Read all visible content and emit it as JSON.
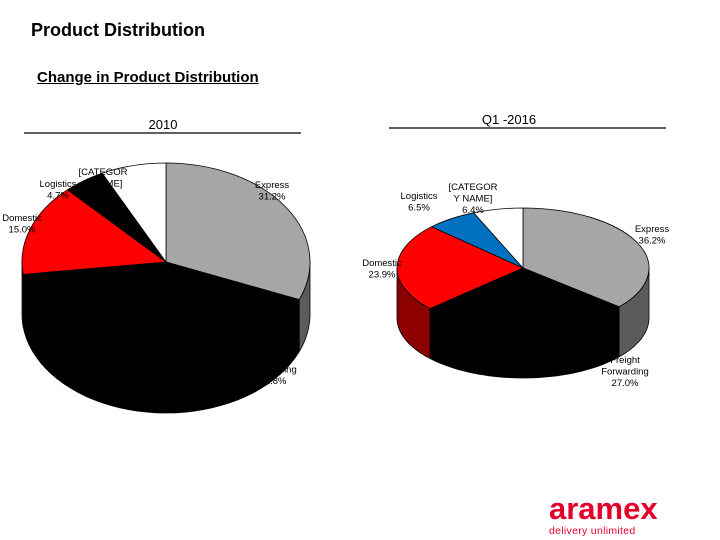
{
  "page": {
    "title": "Product Distribution",
    "subtitle": "Change in Product Distribution"
  },
  "logo": {
    "name": "aramex",
    "tagline": "delivery unlimited",
    "color": "#e3002b"
  },
  "chart_data": [
    {
      "type": "pie",
      "title": "2010",
      "three_d": true,
      "slices": [
        {
          "label_lines": [
            "Express",
            "31.2%"
          ],
          "category": "Express",
          "value": 31.2,
          "color": "#a6a6a6"
        },
        {
          "label_lines": [
            "Freight",
            "Forwarding",
            "41.8%"
          ],
          "category": "Freight Forwarding",
          "value": 41.8,
          "color": "#000000"
        },
        {
          "label_lines": [
            "Domestic",
            "15.0%"
          ],
          "category": "Domestic",
          "value": 15.0,
          "color": "#ff0000"
        },
        {
          "label_lines": [
            "Logistics",
            "4.7%"
          ],
          "category": "Logistics",
          "value": 4.7,
          "color": "#000000"
        },
        {
          "label_lines": [
            "[CATEGOR",
            "Y NAME]",
            "7.3%"
          ],
          "category": "[CATEGORY NAME]",
          "value": 7.3,
          "color": "#ffffff"
        }
      ]
    },
    {
      "type": "pie",
      "title": "Q1 -2016",
      "three_d": true,
      "slices": [
        {
          "label_lines": [
            "Express",
            "36.2%"
          ],
          "category": "Express",
          "value": 36.2,
          "color": "#a6a6a6"
        },
        {
          "label_lines": [
            "Freight",
            "Forwarding",
            "27.0%"
          ],
          "category": "Freight Forwarding",
          "value": 27.0,
          "color": "#000000"
        },
        {
          "label_lines": [
            "Domestic",
            "23.9%"
          ],
          "category": "Domestic",
          "value": 23.9,
          "color": "#ff0000"
        },
        {
          "label_lines": [
            "Logistics",
            "6.5%"
          ],
          "category": "Logistics",
          "value": 6.5,
          "color": "#0070c0"
        },
        {
          "label_lines": [
            "[CATEGOR",
            "Y NAME]",
            "6.4%"
          ],
          "category": "[CATEGORY NAME]",
          "value": 6.4,
          "color": "#ffffff"
        }
      ]
    }
  ]
}
